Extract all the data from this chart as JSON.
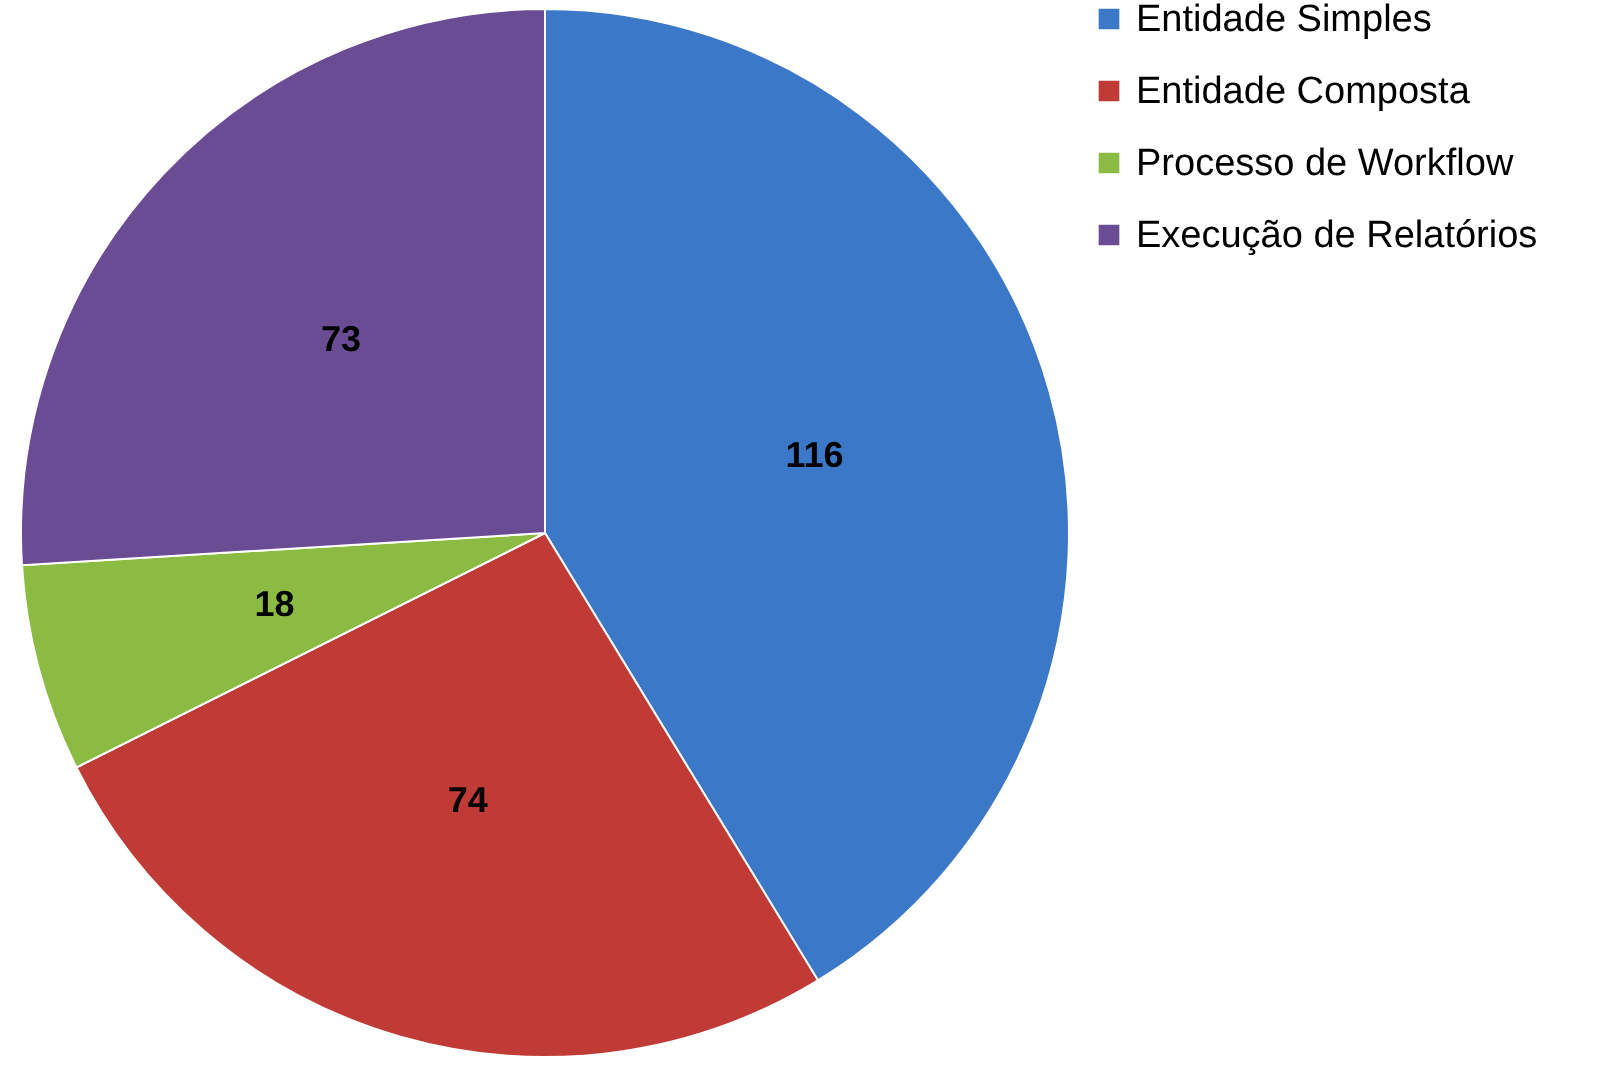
{
  "chart_data": {
    "type": "pie",
    "categories": [
      "Entidade Simples",
      "Entidade Composta",
      "Processo de Workflow",
      "Execução de Relatórios"
    ],
    "values": [
      116,
      74,
      18,
      73
    ],
    "colors": [
      "#3b78c8",
      "#c03b36",
      "#8cbb43",
      "#6a4c94"
    ],
    "data_labels": true,
    "legend": "right"
  }
}
